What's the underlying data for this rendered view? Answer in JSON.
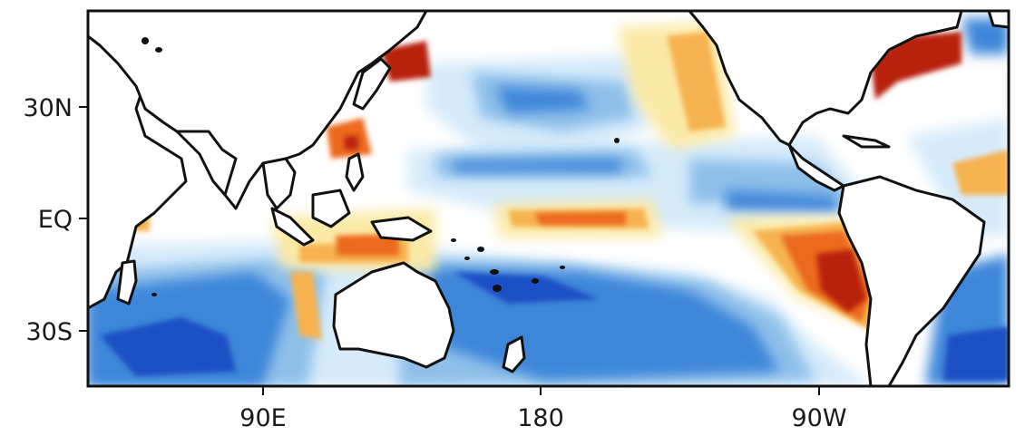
{
  "map": {
    "type": "sst-anomaly-map",
    "colors": {
      "strong_negative": "#1a4fc4",
      "negative": "#3d86d9",
      "weak_negative": "#8fc0ea",
      "very_weak_negative": "#d6ebfa",
      "neutral": "#ffffff",
      "weak_positive": "#fbe9a6",
      "positive": "#f6b24f",
      "strong_positive": "#ec6a1c",
      "very_strong_positive": "#b82410",
      "land": "#ffffff",
      "coastline": "#111111"
    },
    "x_ticks": [
      "90E",
      "180",
      "90W"
    ],
    "y_ticks": [
      "30N",
      "EQ",
      "30S"
    ]
  }
}
